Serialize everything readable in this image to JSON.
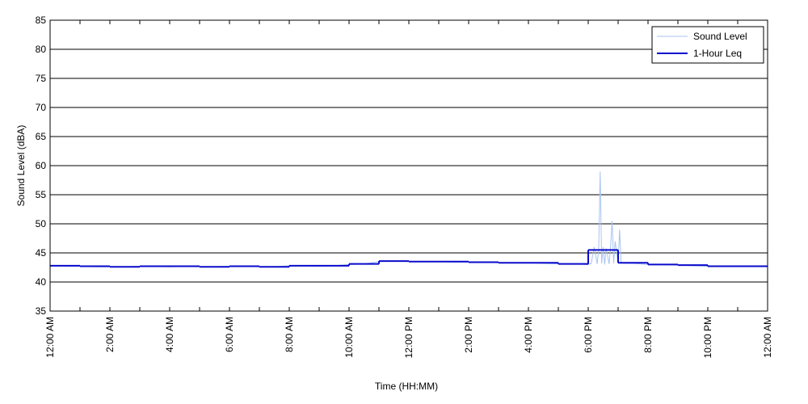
{
  "chart_data": {
    "type": "line",
    "ylabel": "Sound Level (dBA)",
    "xlabel": "Time (HH:MM)",
    "xlim": [
      0,
      24
    ],
    "ylim": [
      35,
      85
    ],
    "yticks": [
      35,
      40,
      45,
      50,
      55,
      60,
      65,
      70,
      75,
      80,
      85
    ],
    "xticks": [
      {
        "value": 0,
        "label": "12:00 AM"
      },
      {
        "value": 2,
        "label": "2:00 AM"
      },
      {
        "value": 4,
        "label": "4:00 AM"
      },
      {
        "value": 6,
        "label": "6:00 AM"
      },
      {
        "value": 8,
        "label": "8:00 AM"
      },
      {
        "value": 10,
        "label": "10:00 AM"
      },
      {
        "value": 12,
        "label": "12:00 PM"
      },
      {
        "value": 14,
        "label": "2:00 PM"
      },
      {
        "value": 16,
        "label": "4:00 PM"
      },
      {
        "value": 18,
        "label": "6:00 PM"
      },
      {
        "value": 20,
        "label": "8:00 PM"
      },
      {
        "value": 22,
        "label": "10:00 PM"
      },
      {
        "value": 24,
        "label": "12:00 AM"
      }
    ],
    "xminorticks": [
      1,
      3,
      5,
      7,
      9,
      11,
      13,
      15,
      17,
      19,
      21,
      23
    ],
    "grid": true,
    "legend": "upper right",
    "series": [
      {
        "name": "Sound Level",
        "color": "#a9c3f0",
        "style": "line",
        "x": [
          0,
          0.5,
          1,
          1.5,
          2,
          2.5,
          3,
          3.5,
          4,
          4.5,
          5,
          5.5,
          6,
          6.5,
          7,
          7.5,
          8,
          8.5,
          9,
          9.5,
          10,
          10.5,
          11,
          11.5,
          12,
          12.5,
          13,
          13.5,
          14,
          14.5,
          15,
          15.5,
          16,
          16.5,
          17,
          17.5,
          18,
          18.1,
          18.2,
          18.3,
          18.35,
          18.4,
          18.45,
          18.5,
          18.55,
          18.6,
          18.7,
          18.75,
          18.8,
          18.85,
          18.9,
          19,
          19.05,
          19.1,
          19.2,
          19.5,
          20,
          20.5,
          21,
          21.5,
          22,
          22.5,
          23,
          23.5,
          24
        ],
        "values": [
          42.8,
          42.7,
          42.7,
          42.6,
          42.6,
          42.6,
          42.7,
          42.7,
          42.6,
          42.7,
          42.6,
          42.6,
          42.7,
          42.7,
          42.6,
          42.6,
          42.8,
          42.8,
          42.7,
          42.8,
          43.0,
          43.1,
          43.5,
          43.6,
          43.5,
          43.5,
          43.5,
          43.4,
          43.4,
          43.4,
          43.3,
          43.3,
          43.3,
          43.2,
          43.1,
          43.1,
          43.0,
          43.2,
          46.0,
          43.1,
          45.5,
          59.0,
          43.2,
          46.0,
          43.0,
          45.8,
          43.1,
          46.2,
          50.5,
          43.2,
          47.0,
          43.2,
          49.0,
          43.3,
          43.2,
          43.2,
          43.0,
          43.0,
          42.9,
          42.8,
          42.7,
          42.7,
          42.7,
          42.7,
          42.7
        ]
      },
      {
        "name": "1-Hour Leq",
        "color": "#0a0acc",
        "style": "step",
        "x": [
          0,
          1,
          2,
          3,
          4,
          5,
          6,
          7,
          8,
          9,
          10,
          11,
          12,
          13,
          14,
          15,
          16,
          17,
          18,
          19,
          20,
          21,
          22,
          23
        ],
        "values": [
          42.8,
          42.7,
          42.6,
          42.7,
          42.7,
          42.6,
          42.7,
          42.6,
          42.8,
          42.8,
          43.1,
          43.6,
          43.5,
          43.5,
          43.4,
          43.3,
          43.3,
          43.1,
          45.5,
          43.3,
          43.0,
          42.9,
          42.7,
          42.7
        ]
      }
    ]
  }
}
